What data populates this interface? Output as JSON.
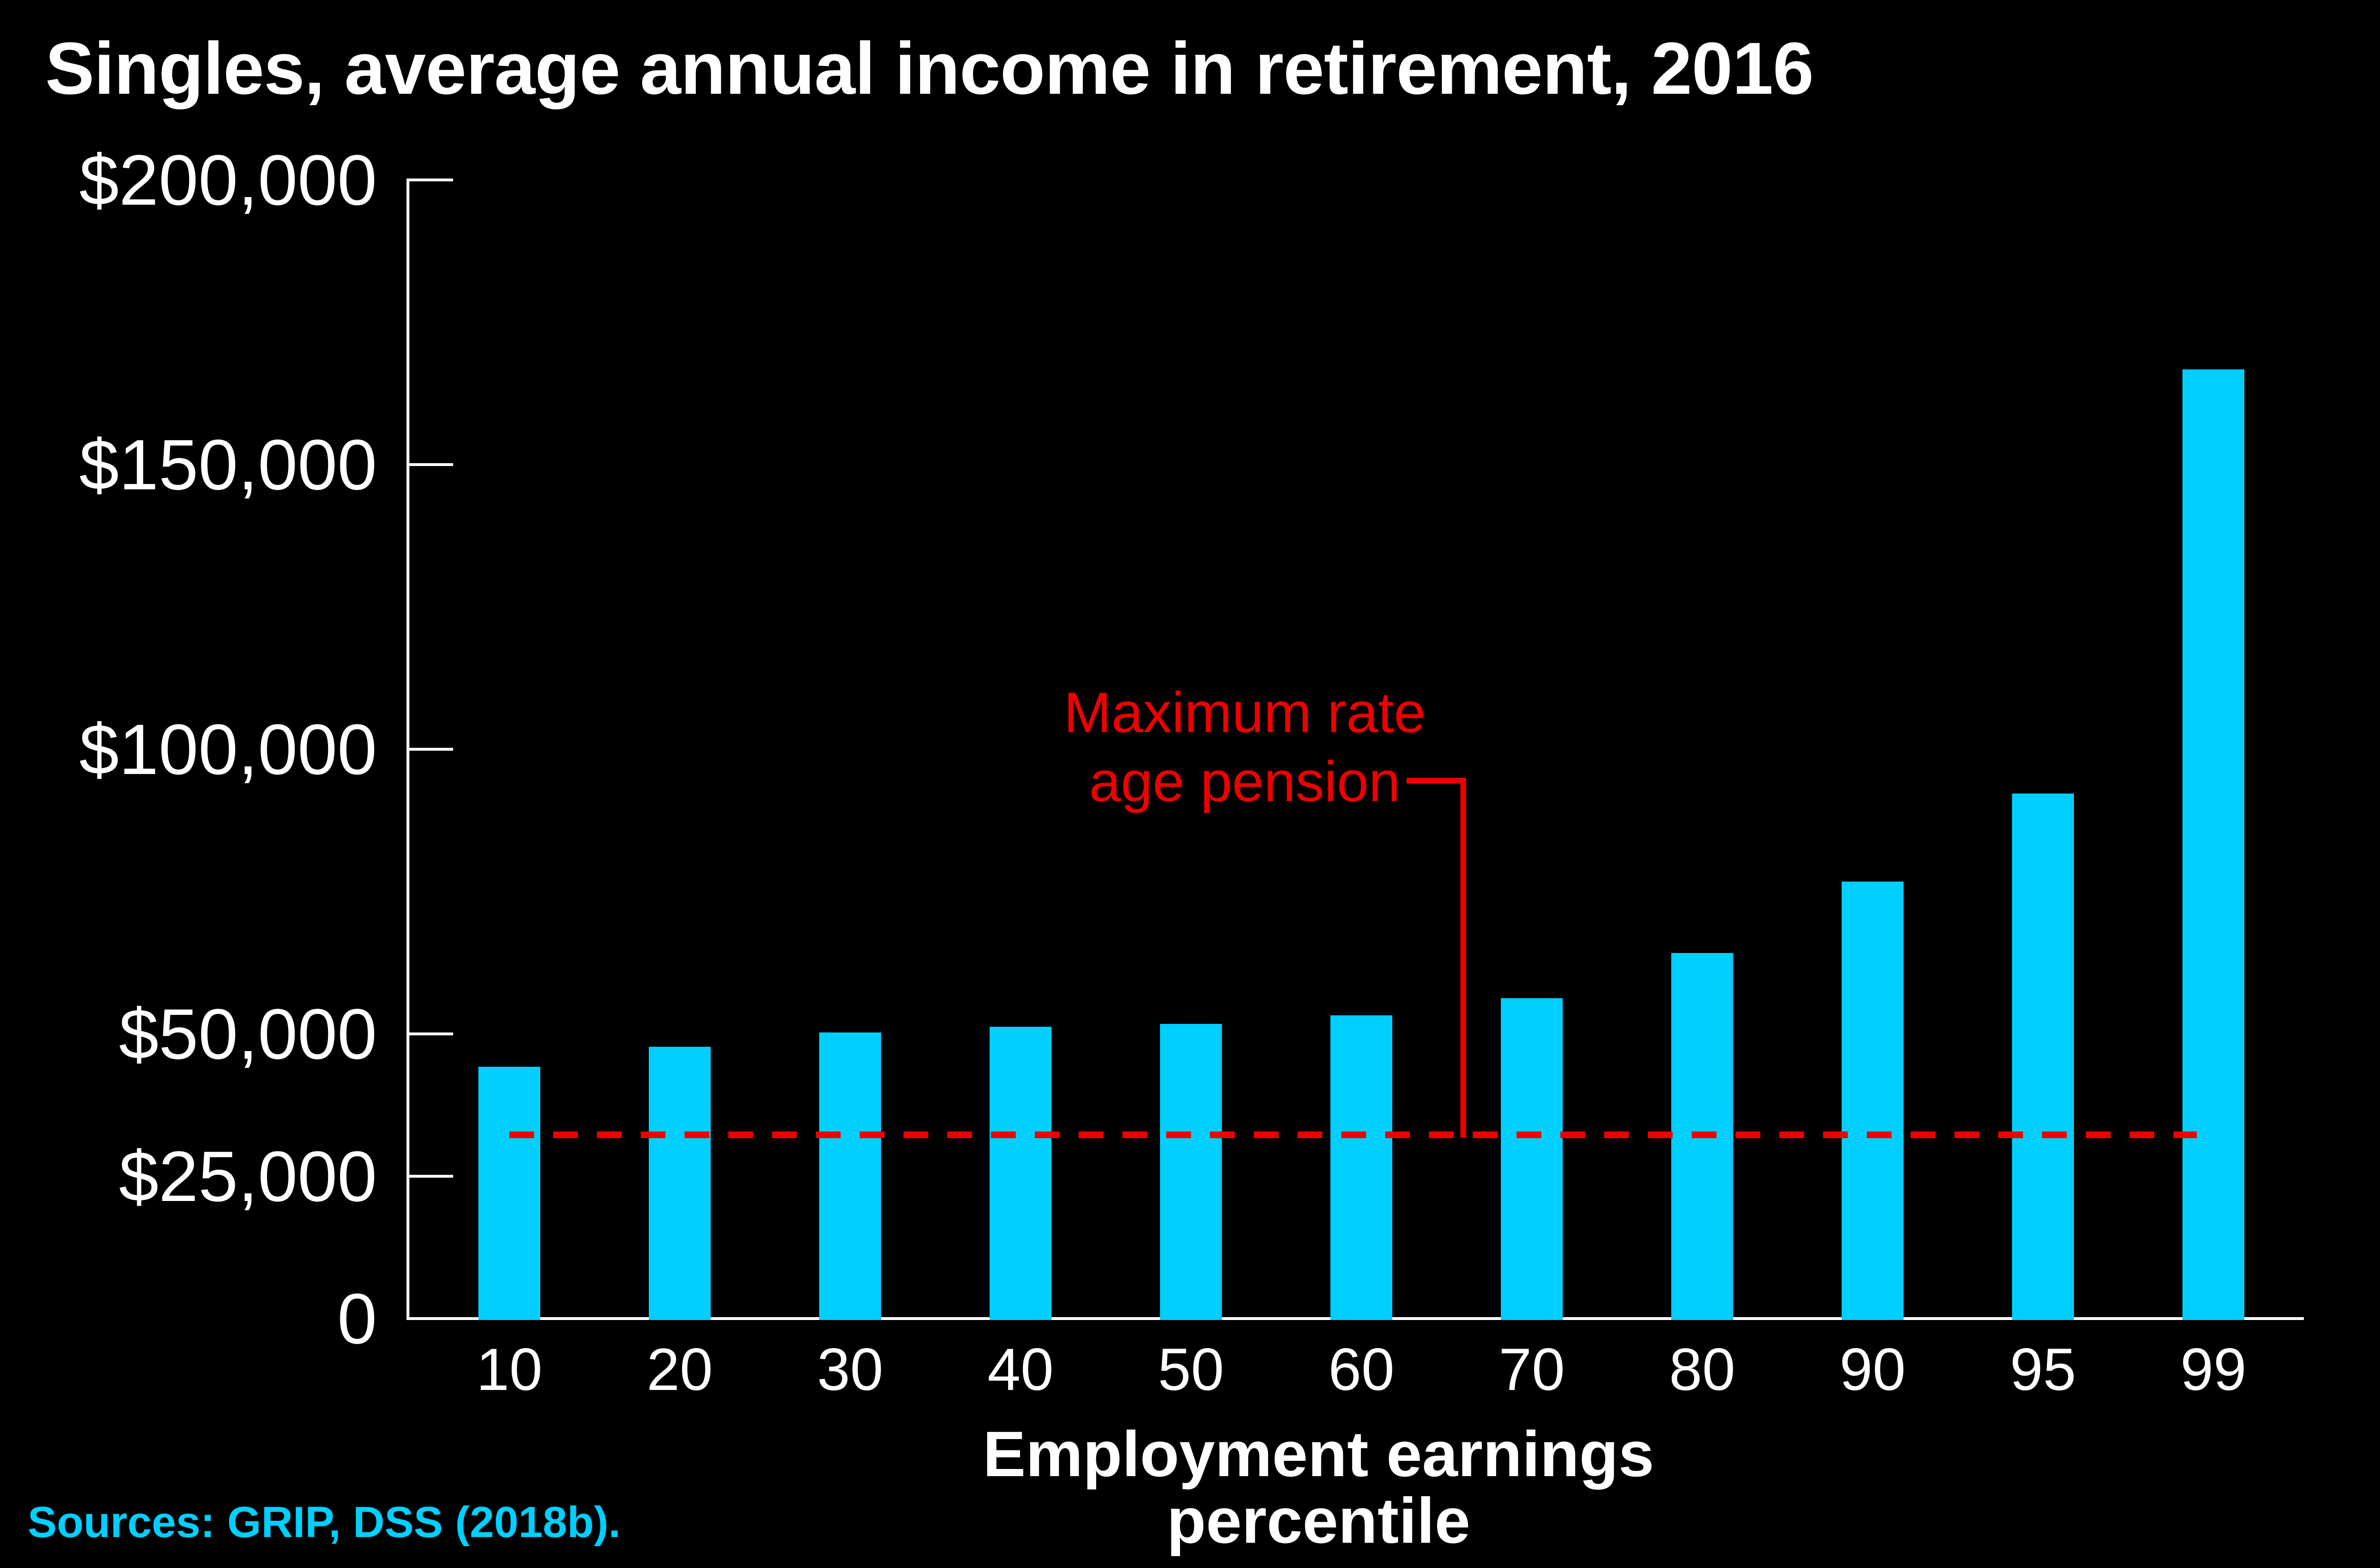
{
  "title": "Singles, average annual income in retirement, 2016",
  "source": {
    "text": "Sources: GRIP, DSS (2018b)."
  },
  "annotation": {
    "line1": "Maximum rate",
    "line2": "age pension"
  },
  "x_axis": {
    "label": "Employment earnings percentile"
  },
  "y_axis": {
    "max": 200000,
    "ticks": [
      {
        "label": "$200,000",
        "value": 200000
      },
      {
        "label": "$150,000",
        "value": 150000
      },
      {
        "label": "$100,000",
        "value": 100000
      },
      {
        "label": "$50,000",
        "value": 50000
      },
      {
        "label": "$25,000",
        "value": 25000
      },
      {
        "label": "0",
        "value": 0
      }
    ]
  },
  "colors": {
    "background": "#000000",
    "text": "#FFFFFF",
    "bar": "#00CFFF",
    "red": "#EE0000"
  },
  "chart_data": {
    "type": "bar",
    "title": "Singles, average annual income in retirement, 2016",
    "categories": [
      "10",
      "20",
      "30",
      "40",
      "50",
      "60",
      "70",
      "80",
      "90",
      "95",
      "99"
    ],
    "values": [
      44000,
      47500,
      50000,
      51000,
      51500,
      53000,
      56000,
      64000,
      76500,
      92000,
      166500
    ],
    "xlabel": "Employment earnings percentile",
    "ylabel": "",
    "ylim": [
      0,
      200000
    ],
    "y_tick_values": [
      0,
      25000,
      50000,
      100000,
      150000,
      200000
    ],
    "grid": false,
    "legend": false,
    "bar_color": "#00CFFF",
    "reference_line": {
      "label": "Maximum rate age pension",
      "value": 32000,
      "style": "dashed",
      "color": "#EE0000"
    }
  }
}
